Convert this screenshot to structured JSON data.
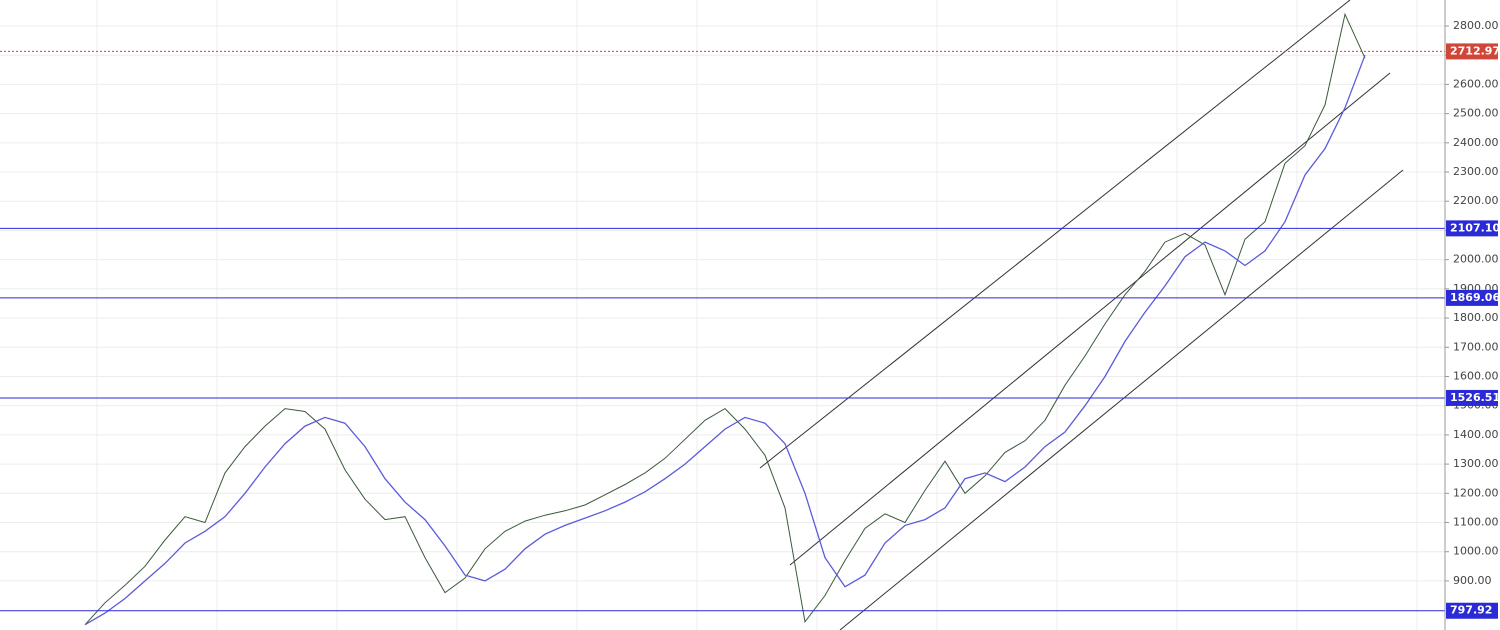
{
  "chart_data": {
    "type": "line",
    "ylim": [
      732,
      2889
    ],
    "yticks": [
      {
        "value": 900,
        "label": "900.00"
      },
      {
        "value": 1000,
        "label": "1000.00"
      },
      {
        "value": 1100,
        "label": "1100.00"
      },
      {
        "value": 1200,
        "label": "1200.00"
      },
      {
        "value": 1300,
        "label": "1300.00"
      },
      {
        "value": 1400,
        "label": "1400.00"
      },
      {
        "value": 1500,
        "label": "1500.00"
      },
      {
        "value": 1600,
        "label": "1600.00"
      },
      {
        "value": 1700,
        "label": "1700.00"
      },
      {
        "value": 1800,
        "label": "1800.00"
      },
      {
        "value": 1900,
        "label": "1900.00"
      },
      {
        "value": 2000,
        "label": "2000.00"
      },
      {
        "value": 2100,
        "label": "2100.00"
      },
      {
        "value": 2200,
        "label": "2200.00"
      },
      {
        "value": 2300,
        "label": "2300.00"
      },
      {
        "value": 2400,
        "label": "2400.00"
      },
      {
        "value": 2500,
        "label": "2500.00"
      },
      {
        "value": 2600,
        "label": "2600.00"
      },
      {
        "value": 2700,
        "label": "2700.00"
      },
      {
        "value": 2800,
        "label": "2800.00"
      }
    ],
    "grid": true,
    "levels": [
      {
        "value": 797.92,
        "label": "797.92",
        "color": "#2a2ad6"
      },
      {
        "value": 1526.51,
        "label": "1526.51",
        "color": "#2a2ad6"
      },
      {
        "value": 1869.06,
        "label": "1869.06",
        "color": "#2a2ad6"
      },
      {
        "value": 2107.1,
        "label": "2107.10",
        "color": "#2a2ad6"
      }
    ],
    "last_price": {
      "value": 2712.97,
      "label": "2712.97",
      "color": "#d0473a"
    },
    "series": [
      {
        "color": "#3b5a3b",
        "values": [
          750,
          825,
          885,
          950,
          1040,
          1120,
          1100,
          1270,
          1360,
          1430,
          1490,
          1480,
          1420,
          1280,
          1180,
          1110,
          1120,
          980,
          860,
          910,
          1010,
          1070,
          1105,
          1125,
          1140,
          1160,
          1195,
          1230,
          1270,
          1320,
          1385,
          1450,
          1490,
          1420,
          1330,
          1150,
          760,
          850,
          970,
          1080,
          1130,
          1100,
          1210,
          1310,
          1200,
          1260,
          1340,
          1380,
          1450,
          1570,
          1670,
          1780,
          1880,
          1960,
          2060,
          2090,
          2050,
          1880,
          2070,
          2130,
          2330,
          2390,
          2530,
          2840,
          2690
        ]
      },
      {
        "color": "#5b5bdc",
        "values": [
          750,
          790,
          840,
          900,
          960,
          1030,
          1070,
          1120,
          1200,
          1290,
          1370,
          1430,
          1460,
          1440,
          1360,
          1250,
          1170,
          1110,
          1020,
          920,
          900,
          940,
          1010,
          1060,
          1090,
          1115,
          1140,
          1170,
          1205,
          1250,
          1300,
          1360,
          1420,
          1460,
          1440,
          1370,
          1200,
          980,
          880,
          920,
          1030,
          1090,
          1110,
          1150,
          1250,
          1270,
          1240,
          1290,
          1360,
          1410,
          1500,
          1600,
          1720,
          1820,
          1910,
          2010,
          2060,
          2030,
          1980,
          2030,
          2130,
          2290,
          2380,
          2520,
          2700
        ]
      }
    ]
  }
}
